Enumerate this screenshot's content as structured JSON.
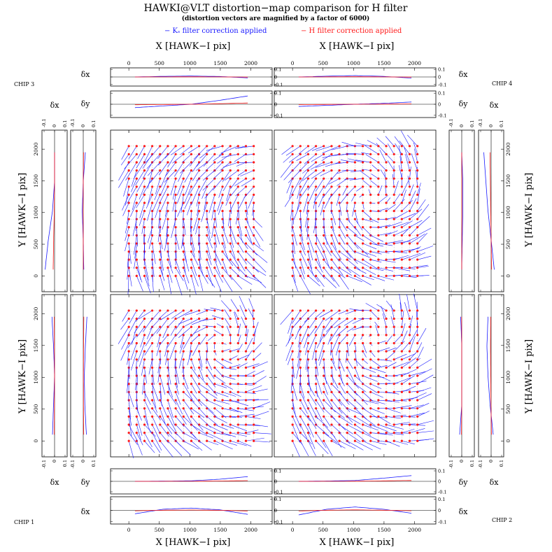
{
  "title": "HAWKI@VLT distortion−map comparison for H filter",
  "subtitle": "(distortion vectors are magnified by a factor of 6000)",
  "legend": {
    "ks_label": "− Kₛ filter correction applied",
    "h_label": "− H filter correction applied",
    "ks_color": "#1a1aff",
    "h_color": "#ff1a1a"
  },
  "axis_labels": {
    "x": "X [HAWK−I pix]",
    "y": "Y [HAWK−I pix]",
    "dx": "δx",
    "dy": "δy"
  },
  "chips": {
    "chip1": "CHIP 1",
    "chip2": "CHIP 2",
    "chip3": "CHIP 3",
    "chip4": "CHIP 4"
  },
  "chart_data": {
    "type": "vector-field",
    "magnification": 6000,
    "xlim": [
      -300,
      2350
    ],
    "ylim": [
      -250,
      2300
    ],
    "x_ticks": [
      0,
      500,
      1000,
      1500,
      2000
    ],
    "y_ticks": [
      0,
      500,
      1000,
      1500,
      2000
    ],
    "residual_ylim": [
      -0.12,
      0.12
    ],
    "residual_ticks": [
      -0.1,
      0,
      0.1
    ],
    "grid_step": 128,
    "grid_range": [
      0,
      2048
    ],
    "panels": [
      {
        "id": "chip3",
        "position": "top-left",
        "center": [
          2400,
          1250
        ],
        "amp": 0.1
      },
      {
        "id": "chip4",
        "position": "top-right",
        "center": [
          1250,
          1250
        ],
        "amp": 0.1
      },
      {
        "id": "chip1",
        "position": "bottom-left",
        "center": [
          1500,
          1550
        ],
        "amp": 0.1
      },
      {
        "id": "chip2",
        "position": "bottom-right",
        "center": [
          1300,
          1600
        ],
        "amp": 0.1
      }
    ],
    "residual_curves": {
      "top-left": {
        "dx": [
          0,
          0.008,
          0.012,
          0.006,
          -0.012
        ],
        "dy": [
          -0.03,
          -0.015,
          0,
          0.035,
          0.075
        ]
      },
      "top-right": {
        "dx": [
          0,
          0.01,
          0.018,
          0.008,
          -0.015
        ],
        "dy": [
          -0.02,
          -0.01,
          0,
          0.008,
          0.02
        ]
      },
      "bottom-left": {
        "dy": [
          0,
          0.002,
          0.005,
          0.02,
          0.045
        ],
        "dx": [
          -0.03,
          0.01,
          0.02,
          0.005,
          -0.035
        ]
      },
      "bottom-right": {
        "dy": [
          0,
          0.003,
          0.008,
          0.03,
          0.055
        ],
        "dx": [
          -0.04,
          0.01,
          0.03,
          0.01,
          -0.025
        ]
      }
    },
    "side_curves": {
      "left-top": {
        "dx": [
          -0.09,
          -0.06,
          -0.02,
          0.0,
          0.0
        ],
        "dy": [
          0.005,
          0.0,
          -0.01,
          0.0,
          0.02
        ]
      },
      "left-bottom": {
        "dx": [
          -0.02,
          -0.01,
          0.0,
          -0.01,
          -0.025
        ],
        "dy": [
          0.03,
          0.015,
          0.01,
          0.02,
          0.035
        ]
      },
      "right-top": {
        "dy": [
          0.0,
          0.005,
          0.01,
          0.01,
          0.0
        ],
        "dx": [
          0.03,
          0.0,
          -0.03,
          -0.05,
          -0.07
        ]
      },
      "right-bottom": {
        "dy": [
          -0.02,
          0.0,
          0.0,
          0.0,
          -0.01
        ],
        "dx": [
          0.02,
          -0.01,
          -0.03,
          -0.04,
          -0.03
        ]
      }
    }
  }
}
